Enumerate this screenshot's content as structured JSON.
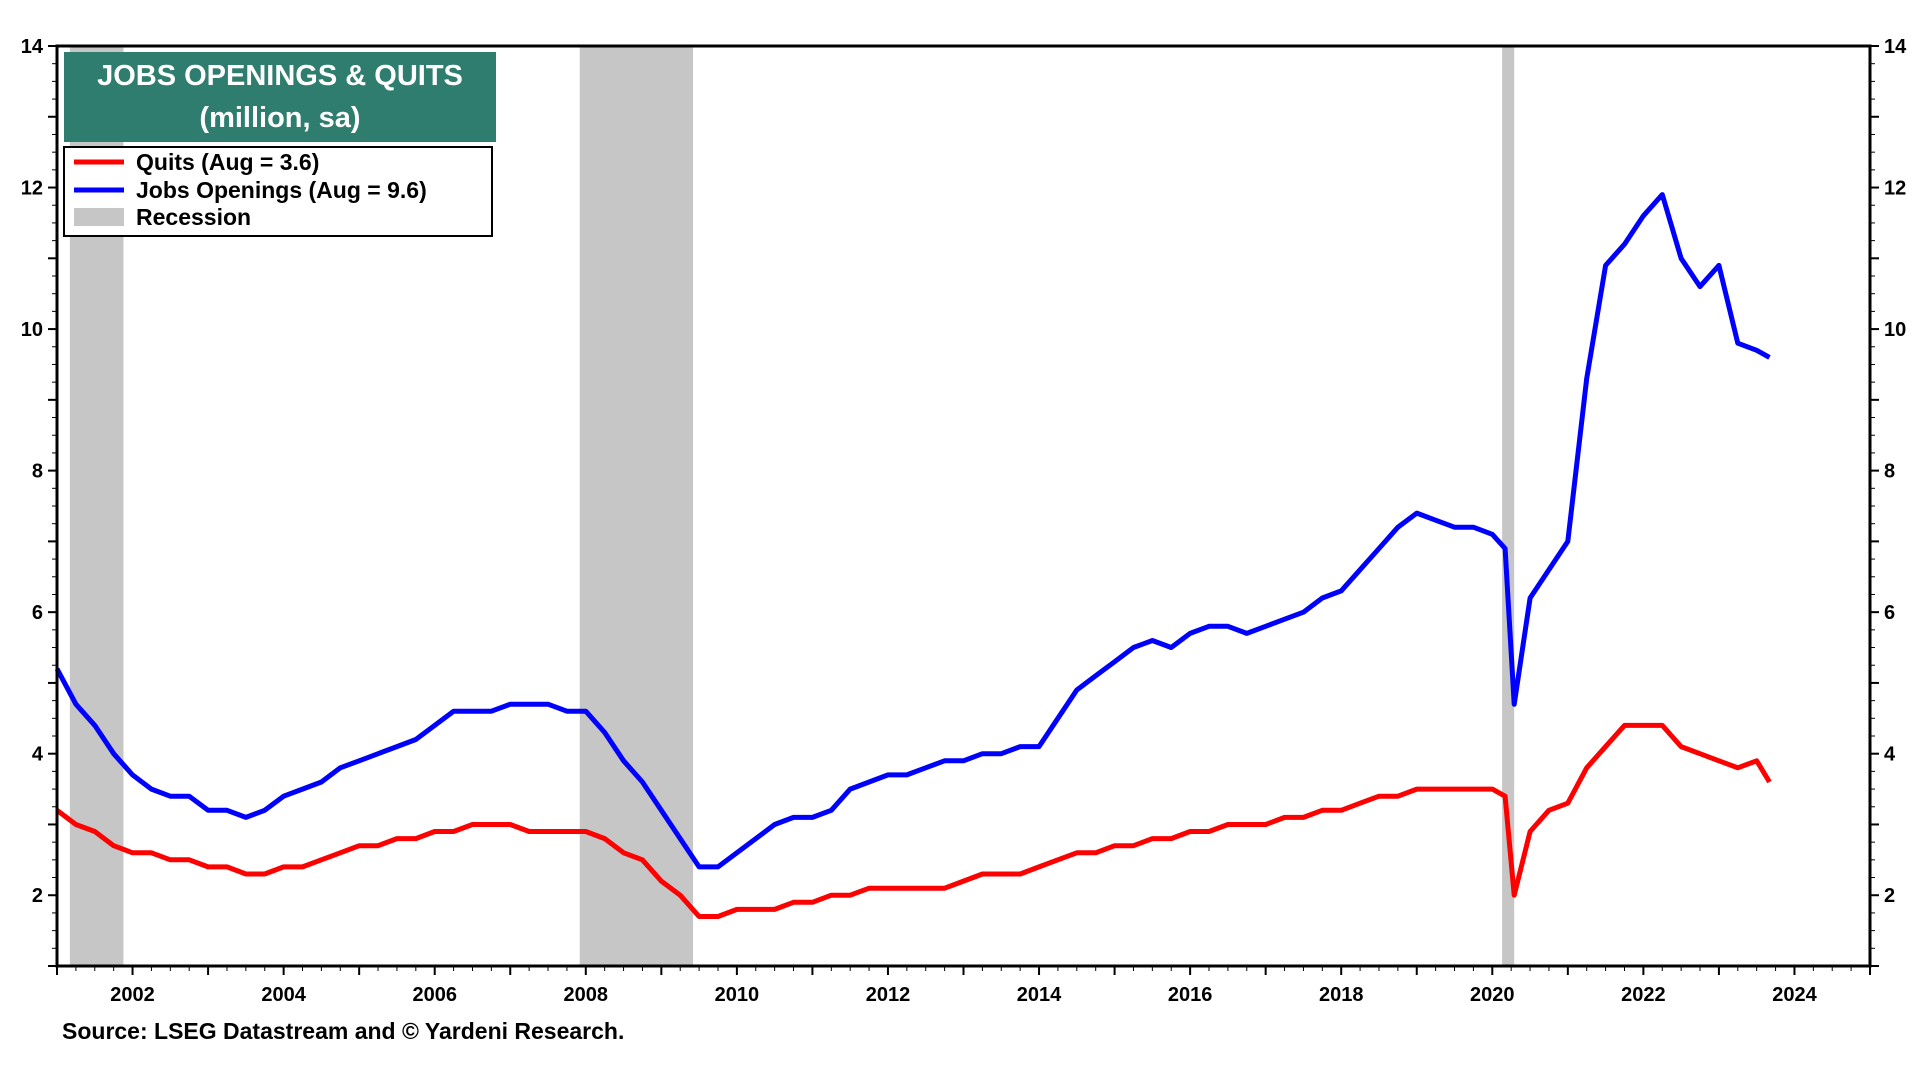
{
  "chart_data": {
    "type": "line",
    "title": "JOBS OPENINGS & QUITS",
    "subtitle": "(million, sa)",
    "xlabel": "",
    "ylabel": "",
    "xlim": [
      2001.0,
      2025.0
    ],
    "ylim": [
      1.0,
      14.0
    ],
    "x_ticks": [
      2002,
      2004,
      2006,
      2008,
      2010,
      2012,
      2014,
      2016,
      2018,
      2020,
      2022,
      2024
    ],
    "x_tick_labels": [
      "2002",
      "2004",
      "2006",
      "2008",
      "2010",
      "2012",
      "2014",
      "2016",
      "2018",
      "2020",
      "2022",
      "2024"
    ],
    "y_ticks": [
      2,
      4,
      6,
      8,
      10,
      12,
      14
    ],
    "y_tick_labels": [
      "2",
      "4",
      "6",
      "8",
      "10",
      "12",
      "14"
    ],
    "recessions": [
      [
        2001.17,
        2001.88
      ],
      [
        2007.92,
        2009.42
      ],
      [
        2020.13,
        2020.29
      ]
    ],
    "legend": [
      {
        "label": "Quits (Aug = 3.6)",
        "color": "#ff0000",
        "kind": "line"
      },
      {
        "label": "Jobs Openings  (Aug = 9.6)",
        "color": "#0000ff",
        "kind": "line"
      },
      {
        "label": "Recession",
        "color": "#c6c6c6",
        "kind": "box"
      }
    ],
    "series": [
      {
        "name": "Jobs Openings",
        "color": "#0000ff",
        "x": [
          2001.0,
          2001.25,
          2001.5,
          2001.75,
          2002.0,
          2002.25,
          2002.5,
          2002.75,
          2003.0,
          2003.25,
          2003.5,
          2003.75,
          2004.0,
          2004.25,
          2004.5,
          2004.75,
          2005.0,
          2005.25,
          2005.5,
          2005.75,
          2006.0,
          2006.25,
          2006.5,
          2006.75,
          2007.0,
          2007.25,
          2007.5,
          2007.75,
          2008.0,
          2008.25,
          2008.5,
          2008.75,
          2009.0,
          2009.25,
          2009.5,
          2009.75,
          2010.0,
          2010.25,
          2010.5,
          2010.75,
          2011.0,
          2011.25,
          2011.5,
          2011.75,
          2012.0,
          2012.25,
          2012.5,
          2012.75,
          2013.0,
          2013.25,
          2013.5,
          2013.75,
          2014.0,
          2014.25,
          2014.5,
          2014.75,
          2015.0,
          2015.25,
          2015.5,
          2015.75,
          2016.0,
          2016.25,
          2016.5,
          2016.75,
          2017.0,
          2017.25,
          2017.5,
          2017.75,
          2018.0,
          2018.25,
          2018.5,
          2018.75,
          2019.0,
          2019.25,
          2019.5,
          2019.75,
          2020.0,
          2020.17,
          2020.29,
          2020.5,
          2020.75,
          2021.0,
          2021.25,
          2021.5,
          2021.75,
          2022.0,
          2022.25,
          2022.5,
          2022.75,
          2023.0,
          2023.25,
          2023.5,
          2023.67
        ],
        "values": [
          5.2,
          4.7,
          4.4,
          4.0,
          3.7,
          3.5,
          3.4,
          3.4,
          3.2,
          3.2,
          3.1,
          3.2,
          3.4,
          3.5,
          3.6,
          3.8,
          3.9,
          4.0,
          4.1,
          4.2,
          4.4,
          4.6,
          4.6,
          4.6,
          4.7,
          4.7,
          4.7,
          4.6,
          4.6,
          4.3,
          3.9,
          3.6,
          3.2,
          2.8,
          2.4,
          2.4,
          2.6,
          2.8,
          3.0,
          3.1,
          3.1,
          3.2,
          3.5,
          3.6,
          3.7,
          3.7,
          3.8,
          3.9,
          3.9,
          4.0,
          4.0,
          4.1,
          4.1,
          4.5,
          4.9,
          5.1,
          5.3,
          5.5,
          5.6,
          5.5,
          5.7,
          5.8,
          5.8,
          5.7,
          5.8,
          5.9,
          6.0,
          6.2,
          6.3,
          6.6,
          6.9,
          7.2,
          7.4,
          7.3,
          7.2,
          7.2,
          7.1,
          6.9,
          4.7,
          6.2,
          6.6,
          7.0,
          9.3,
          10.9,
          11.2,
          11.6,
          11.9,
          11.0,
          10.6,
          10.9,
          9.8,
          9.7,
          9.6
        ]
      },
      {
        "name": "Quits",
        "color": "#ff0000",
        "x": [
          2001.0,
          2001.25,
          2001.5,
          2001.75,
          2002.0,
          2002.25,
          2002.5,
          2002.75,
          2003.0,
          2003.25,
          2003.5,
          2003.75,
          2004.0,
          2004.25,
          2004.5,
          2004.75,
          2005.0,
          2005.25,
          2005.5,
          2005.75,
          2006.0,
          2006.25,
          2006.5,
          2006.75,
          2007.0,
          2007.25,
          2007.5,
          2007.75,
          2008.0,
          2008.25,
          2008.5,
          2008.75,
          2009.0,
          2009.25,
          2009.5,
          2009.75,
          2010.0,
          2010.25,
          2010.5,
          2010.75,
          2011.0,
          2011.25,
          2011.5,
          2011.75,
          2012.0,
          2012.25,
          2012.5,
          2012.75,
          2013.0,
          2013.25,
          2013.5,
          2013.75,
          2014.0,
          2014.25,
          2014.5,
          2014.75,
          2015.0,
          2015.25,
          2015.5,
          2015.75,
          2016.0,
          2016.25,
          2016.5,
          2016.75,
          2017.0,
          2017.25,
          2017.5,
          2017.75,
          2018.0,
          2018.25,
          2018.5,
          2018.75,
          2019.0,
          2019.25,
          2019.5,
          2019.75,
          2020.0,
          2020.17,
          2020.29,
          2020.5,
          2020.75,
          2021.0,
          2021.25,
          2021.5,
          2021.75,
          2022.0,
          2022.25,
          2022.5,
          2022.75,
          2023.0,
          2023.25,
          2023.5,
          2023.67
        ],
        "values": [
          3.2,
          3.0,
          2.9,
          2.7,
          2.6,
          2.6,
          2.5,
          2.5,
          2.4,
          2.4,
          2.3,
          2.3,
          2.4,
          2.4,
          2.5,
          2.6,
          2.7,
          2.7,
          2.8,
          2.8,
          2.9,
          2.9,
          3.0,
          3.0,
          3.0,
          2.9,
          2.9,
          2.9,
          2.9,
          2.8,
          2.6,
          2.5,
          2.2,
          2.0,
          1.7,
          1.7,
          1.8,
          1.8,
          1.8,
          1.9,
          1.9,
          2.0,
          2.0,
          2.1,
          2.1,
          2.1,
          2.1,
          2.1,
          2.2,
          2.3,
          2.3,
          2.3,
          2.4,
          2.5,
          2.6,
          2.6,
          2.7,
          2.7,
          2.8,
          2.8,
          2.9,
          2.9,
          3.0,
          3.0,
          3.0,
          3.1,
          3.1,
          3.2,
          3.2,
          3.3,
          3.4,
          3.4,
          3.5,
          3.5,
          3.5,
          3.5,
          3.5,
          3.4,
          2.0,
          2.9,
          3.2,
          3.3,
          3.8,
          4.1,
          4.4,
          4.4,
          4.4,
          4.1,
          4.0,
          3.9,
          3.8,
          3.9,
          3.6
        ]
      }
    ]
  },
  "source_text": "Source: LSEG Datastream and © Yardeni Research."
}
